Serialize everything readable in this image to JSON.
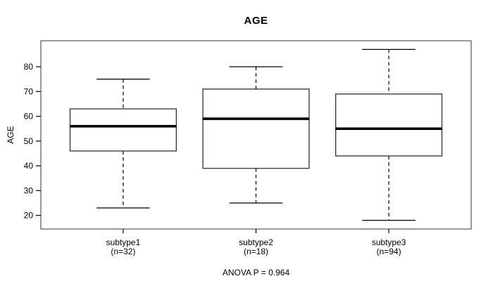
{
  "chart_data": {
    "type": "boxplot",
    "title": "AGE",
    "ylabel": "AGE",
    "xlabel": "",
    "annotation": "ANOVA P = 0.964",
    "ylim": [
      14.5,
      90.5
    ],
    "yticks": [
      20,
      30,
      40,
      50,
      60,
      70,
      80
    ],
    "grid": false,
    "legend": "none",
    "groups": [
      {
        "label": "subtype1",
        "n_label": "(n=32)",
        "whisker_low": 23,
        "q1": 46,
        "median": 56,
        "q3": 63,
        "whisker_high": 75
      },
      {
        "label": "subtype2",
        "n_label": "(n=18)",
        "whisker_low": 25,
        "q1": 39,
        "median": 59,
        "q3": 71,
        "whisker_high": 80
      },
      {
        "label": "subtype3",
        "n_label": "(n=94)",
        "whisker_low": 18,
        "q1": 44,
        "median": 55,
        "q3": 69,
        "whisker_high": 87
      }
    ],
    "colors": {
      "background": "#ffffff",
      "frame": "#6e6e6e",
      "box_border": "#333333",
      "box_fill": "#ffffff",
      "whisker": "#000000",
      "median": "#000000",
      "text": "#000000"
    }
  }
}
